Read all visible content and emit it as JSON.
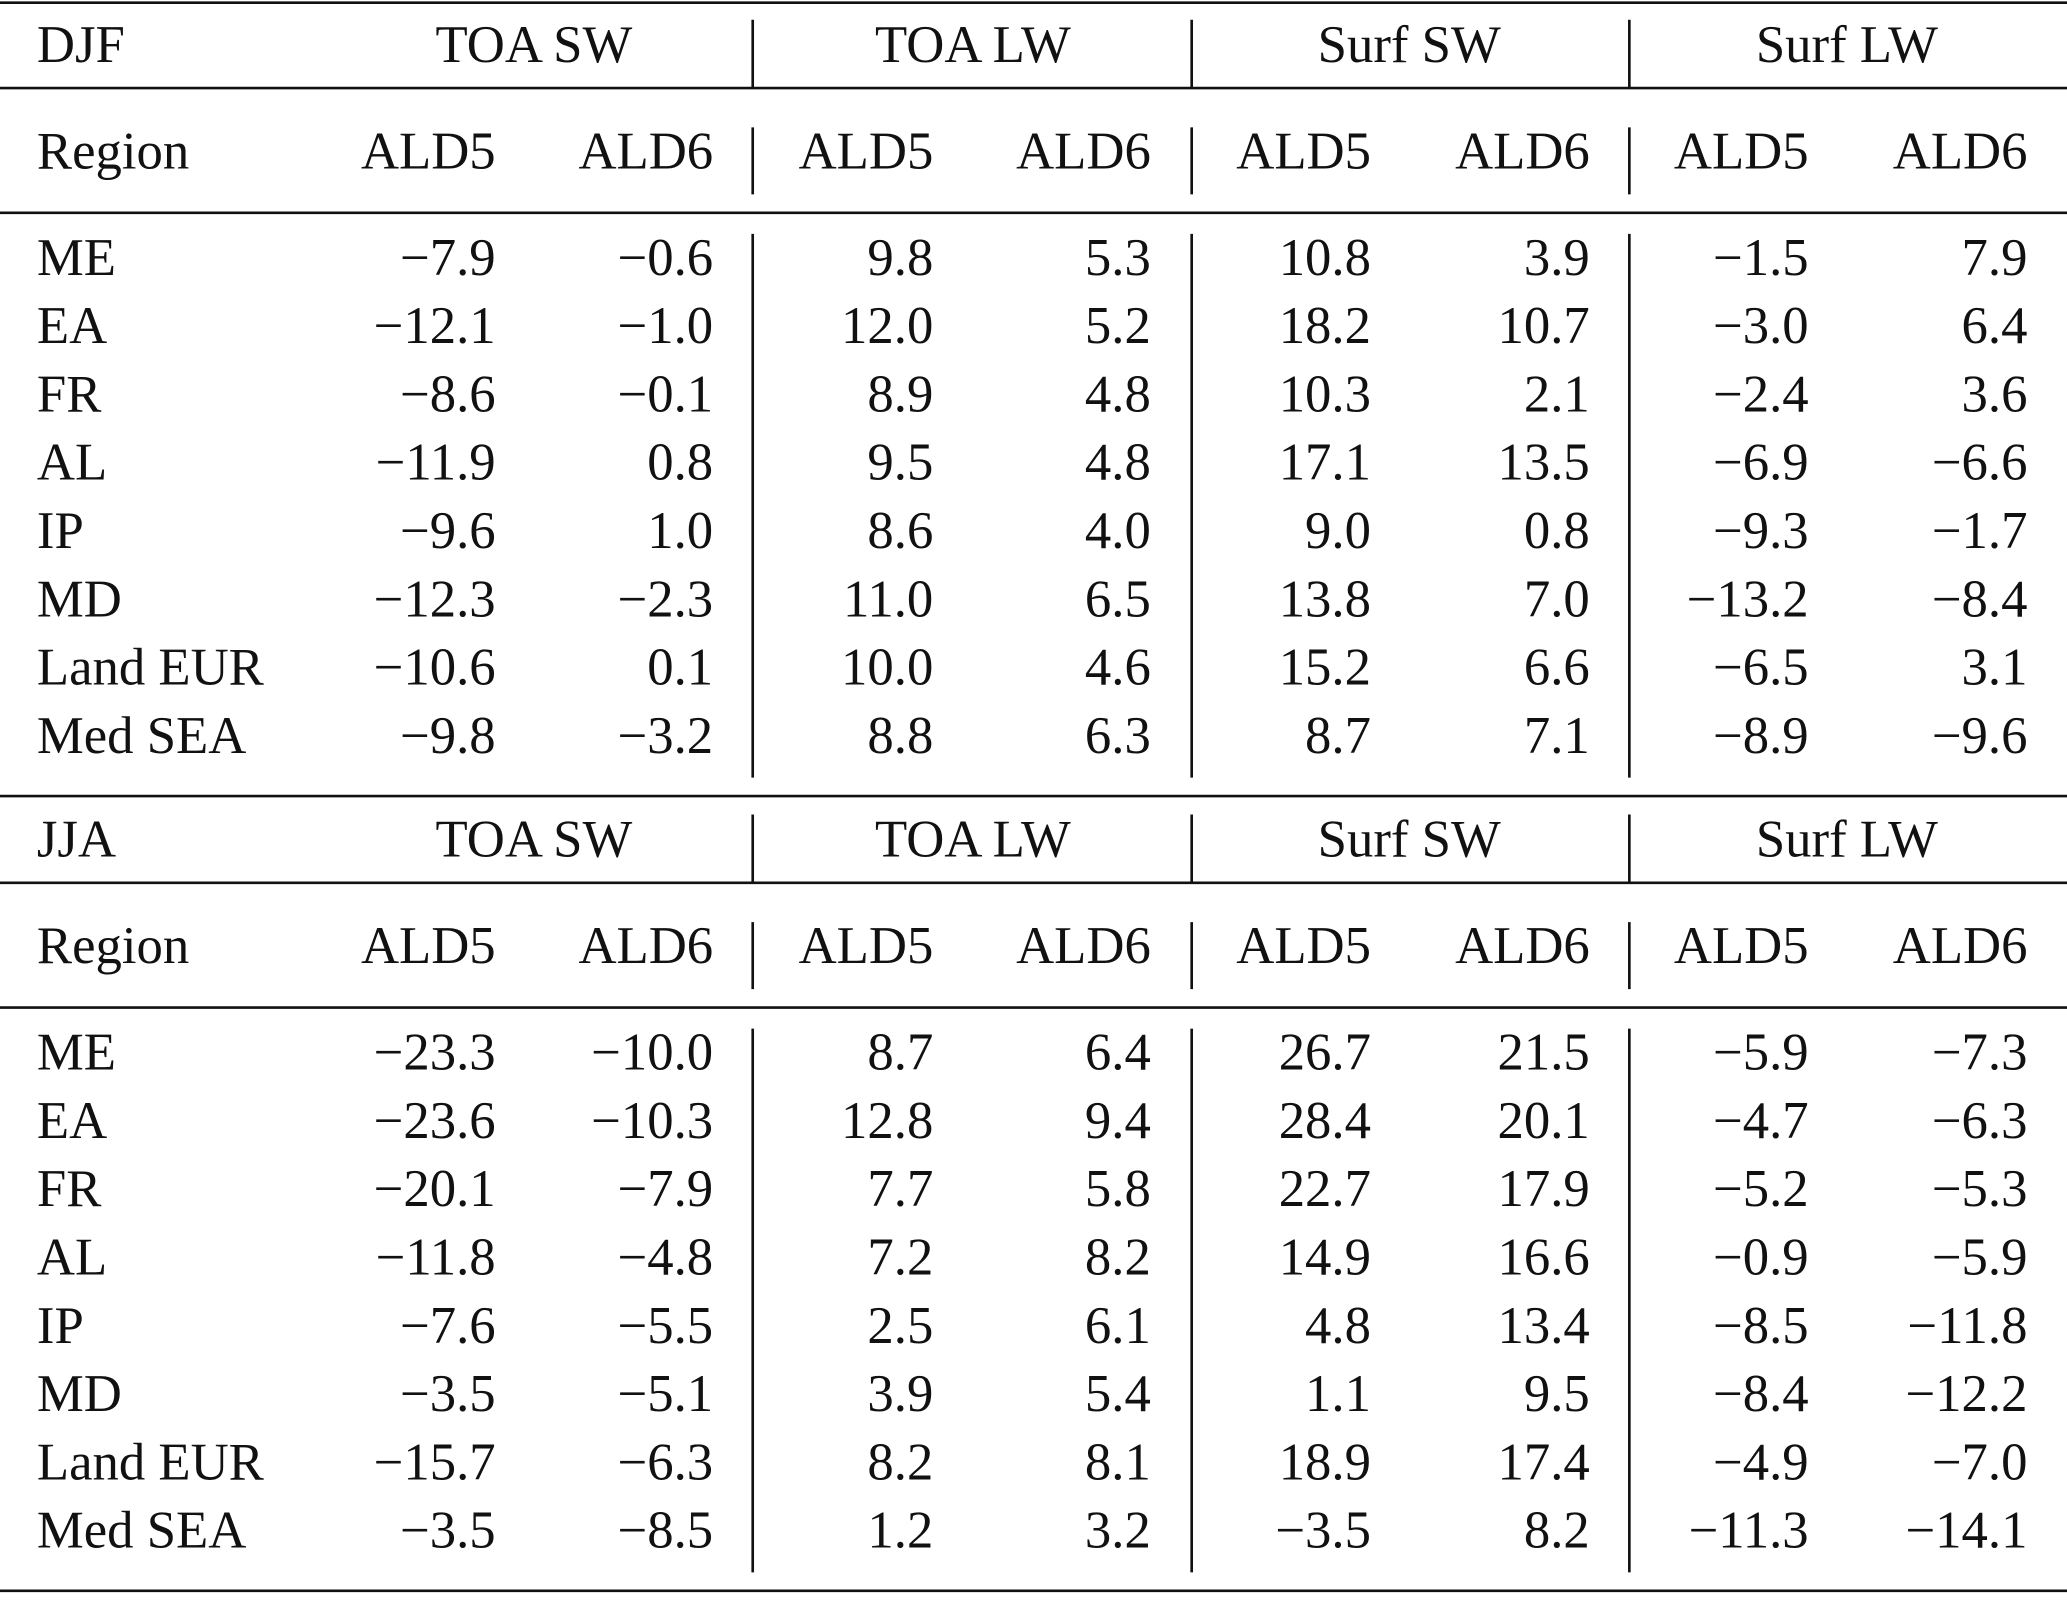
{
  "tables": [
    {
      "season": "DJF",
      "groups": [
        "TOA SW",
        "TOA LW",
        "Surf SW",
        "Surf LW"
      ],
      "region_header": "Region",
      "columns": [
        "ALD5",
        "ALD6",
        "ALD5",
        "ALD6",
        "ALD5",
        "ALD6",
        "ALD5",
        "ALD6"
      ],
      "rows": [
        {
          "region": "ME",
          "values": [
            "−7.9",
            "−0.6",
            "9.8",
            "5.3",
            "10.8",
            "3.9",
            "−1.5",
            "7.9"
          ]
        },
        {
          "region": "EA",
          "values": [
            "−12.1",
            "−1.0",
            "12.0",
            "5.2",
            "18.2",
            "10.7",
            "−3.0",
            "6.4"
          ]
        },
        {
          "region": "FR",
          "values": [
            "−8.6",
            "−0.1",
            "8.9",
            "4.8",
            "10.3",
            "2.1",
            "−2.4",
            "3.6"
          ]
        },
        {
          "region": "AL",
          "values": [
            "−11.9",
            "0.8",
            "9.5",
            "4.8",
            "17.1",
            "13.5",
            "−6.9",
            "−6.6"
          ]
        },
        {
          "region": "IP",
          "values": [
            "−9.6",
            "1.0",
            "8.6",
            "4.0",
            "9.0",
            "0.8",
            "−9.3",
            "−1.7"
          ]
        },
        {
          "region": "MD",
          "values": [
            "−12.3",
            "−2.3",
            "11.0",
            "6.5",
            "13.8",
            "7.0",
            "−13.2",
            "−8.4"
          ]
        },
        {
          "region": "Land EUR",
          "values": [
            "−10.6",
            "0.1",
            "10.0",
            "4.6",
            "15.2",
            "6.6",
            "−6.5",
            "3.1"
          ]
        },
        {
          "region": "Med SEA",
          "values": [
            "−9.8",
            "−3.2",
            "8.8",
            "6.3",
            "8.7",
            "7.1",
            "−8.9",
            "−9.6"
          ]
        }
      ]
    },
    {
      "season": "JJA",
      "groups": [
        "TOA SW",
        "TOA LW",
        "Surf SW",
        "Surf LW"
      ],
      "region_header": "Region",
      "columns": [
        "ALD5",
        "ALD6",
        "ALD5",
        "ALD6",
        "ALD5",
        "ALD6",
        "ALD5",
        "ALD6"
      ],
      "rows": [
        {
          "region": "ME",
          "values": [
            "−23.3",
            "−10.0",
            "8.7",
            "6.4",
            "26.7",
            "21.5",
            "−5.9",
            "−7.3"
          ]
        },
        {
          "region": "EA",
          "values": [
            "−23.6",
            "−10.3",
            "12.8",
            "9.4",
            "28.4",
            "20.1",
            "−4.7",
            "−6.3"
          ]
        },
        {
          "region": "FR",
          "values": [
            "−20.1",
            "−7.9",
            "7.7",
            "5.8",
            "22.7",
            "17.9",
            "−5.2",
            "−5.3"
          ]
        },
        {
          "region": "AL",
          "values": [
            "−11.8",
            "−4.8",
            "7.2",
            "8.2",
            "14.9",
            "16.6",
            "−0.9",
            "−5.9"
          ]
        },
        {
          "region": "IP",
          "values": [
            "−7.6",
            "−5.5",
            "2.5",
            "6.1",
            "4.8",
            "13.4",
            "−8.5",
            "−11.8"
          ]
        },
        {
          "region": "MD",
          "values": [
            "−3.5",
            "−5.1",
            "3.9",
            "5.4",
            "1.1",
            "9.5",
            "−8.4",
            "−12.2"
          ]
        },
        {
          "region": "Land EUR",
          "values": [
            "−15.7",
            "−6.3",
            "8.2",
            "8.1",
            "18.9",
            "17.4",
            "−4.9",
            "−7.0"
          ]
        },
        {
          "region": "Med SEA",
          "values": [
            "−3.5",
            "−8.5",
            "1.2",
            "3.2",
            "−3.5",
            "8.2",
            "−11.3",
            "−14.1"
          ]
        }
      ]
    }
  ]
}
